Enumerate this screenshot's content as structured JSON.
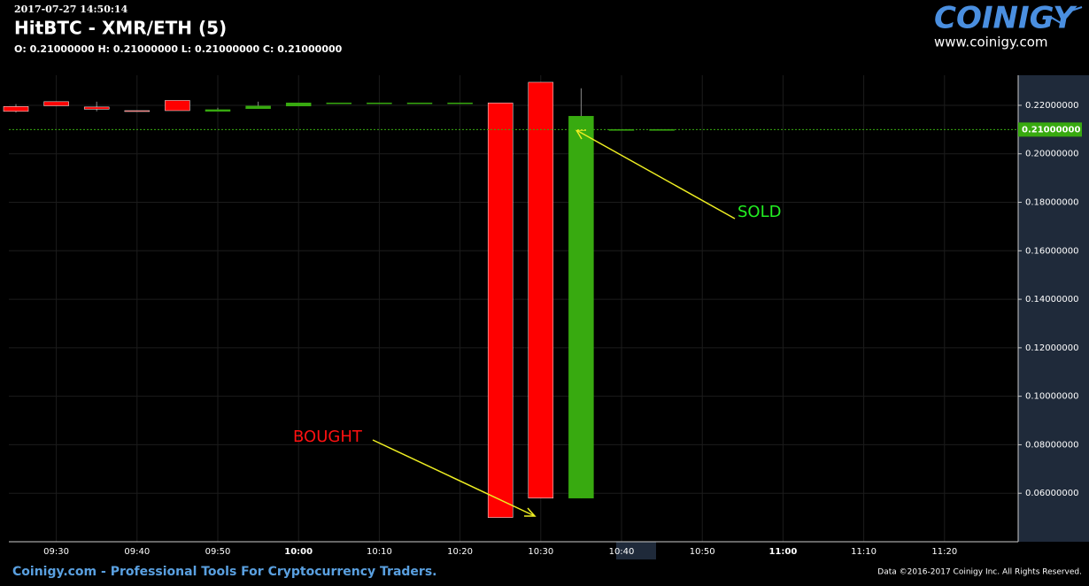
{
  "header": {
    "timestamp": "2017-07-27 14:50:14",
    "ohlc": "O: 0.21000000 H: 0.21000000 L: 0.21000000 C: 0.21000000"
  },
  "logo": {
    "name": "COINIGY",
    "url": "www.coinigy.com"
  },
  "footer": {
    "left": "Coinigy.com - Professional Tools For Cryptocurrency Traders.",
    "right": "Data ©2016-2017 Coinigy Inc. All Rights Reserved."
  },
  "chart_data": {
    "type": "candlestick",
    "title": "HitBTC - XMR/ETH (5)",
    "categories": [
      null,
      "09:30",
      null,
      "09:40",
      null,
      "09:50",
      null,
      "10:00",
      null,
      "10:10",
      null,
      "10:20",
      null,
      "10:30",
      null,
      "10:40",
      null,
      "10:50",
      null,
      "11:00",
      null,
      "11:10",
      null,
      "11:20",
      null
    ],
    "series": [
      {
        "up_color": "#38aa10",
        "down_color": "#ff0000",
        "open": [
          0.2195,
          0.2215,
          0.2193,
          0.2178,
          0.222,
          0.2175,
          0.2186,
          0.2197,
          0.221,
          0.221,
          0.221,
          0.221,
          0.221,
          0.2295,
          0.058,
          0.21,
          0.21,
          null,
          null,
          null,
          null,
          null,
          null,
          null,
          null
        ],
        "high": [
          0.2205,
          0.2215,
          0.2215,
          0.2178,
          0.222,
          0.219,
          0.2215,
          0.221,
          0.221,
          0.221,
          0.221,
          0.221,
          0.221,
          0.2295,
          0.227,
          0.21,
          0.21,
          null,
          null,
          null,
          null,
          null,
          null,
          null,
          null
        ],
        "low": [
          0.217,
          0.2198,
          0.2175,
          0.2175,
          0.2178,
          0.2175,
          0.2186,
          0.2197,
          0.221,
          0.221,
          0.221,
          0.221,
          0.05,
          0.058,
          0.058,
          0.21,
          0.21,
          null,
          null,
          null,
          null,
          null,
          null,
          null,
          null
        ],
        "close": [
          0.2175,
          0.2198,
          0.2184,
          0.2175,
          0.2178,
          0.2182,
          0.2197,
          0.221,
          0.221,
          0.221,
          0.221,
          0.221,
          0.05,
          0.058,
          0.2155,
          0.21,
          0.21,
          null,
          null,
          null,
          null,
          null,
          null,
          null,
          null
        ]
      }
    ],
    "ylim": [
      0.04,
      0.2324
    ],
    "yticks": [
      {
        "value": 0.06,
        "label": "0.06000000"
      },
      {
        "value": 0.08,
        "label": "0.08000000"
      },
      {
        "value": 0.1,
        "label": "0.10000000"
      },
      {
        "value": 0.12,
        "label": "0.12000000"
      },
      {
        "value": 0.14,
        "label": "0.14000000"
      },
      {
        "value": 0.16,
        "label": "0.16000000"
      },
      {
        "value": 0.18,
        "label": "0.18000000"
      },
      {
        "value": 0.2,
        "label": "0.20000000"
      },
      {
        "value": 0.22,
        "label": "0.22000000"
      }
    ],
    "last_price": {
      "value": 0.21,
      "label": "0.21000000",
      "color": "#38aa10"
    },
    "grid": true,
    "annotations": [
      {
        "text": "SOLD",
        "color": "#22ee22"
      },
      {
        "text": "BOUGHT",
        "color": "#ff1111"
      }
    ]
  }
}
